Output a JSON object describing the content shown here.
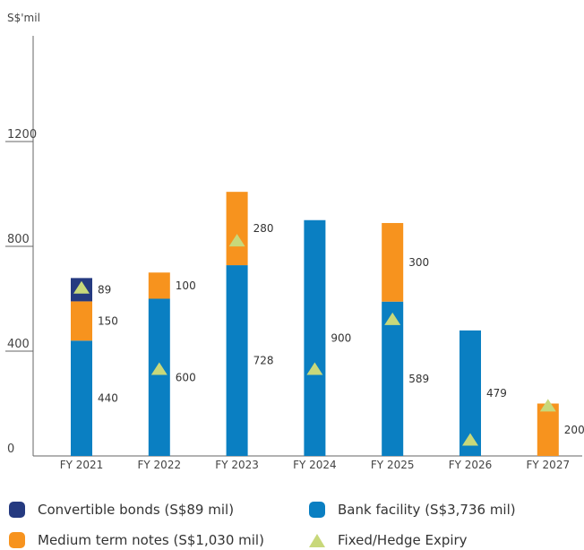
{
  "chart_data": {
    "type": "bar",
    "stacked": true,
    "unit_label": "S$'mil",
    "categories": [
      "FY 2021",
      "FY 2022",
      "FY 2023",
      "FY 2024",
      "FY 2025",
      "FY 2026",
      "FY 2027"
    ],
    "series": [
      {
        "name": "Bank facility (S$3,736 mil)",
        "key": "bank",
        "color": "#0a7fc2",
        "values": [
          440,
          600,
          728,
          900,
          589,
          479,
          0
        ]
      },
      {
        "name": "Medium term notes (S$1,030 mil)",
        "key": "mtn",
        "color": "#f7931e",
        "values": [
          150,
          100,
          280,
          0,
          300,
          0,
          200
        ]
      },
      {
        "name": "Convertible bonds (S$89 mil)",
        "key": "cb",
        "color": "#253a80",
        "values": [
          89,
          0,
          0,
          0,
          0,
          0,
          0
        ]
      }
    ],
    "markers": {
      "name": "Fixed/Hedge Expiry",
      "color": "#c8d87a",
      "values": [
        640,
        330,
        820,
        330,
        520,
        60,
        190
      ]
    },
    "yticks": [
      0,
      400,
      800,
      1200
    ],
    "ylim": [
      0,
      1600
    ],
    "grid": false,
    "legend_position": "bottom"
  },
  "legend": {
    "cb": "Convertible bonds (S$89 mil)",
    "bank": "Bank facility (S$3,736 mil)",
    "mtn": "Medium term notes (S$1,030 mil)",
    "hedge": "Fixed/Hedge Expiry"
  }
}
